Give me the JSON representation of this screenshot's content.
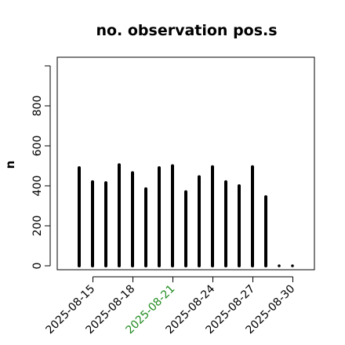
{
  "chart_data": {
    "type": "bar",
    "title": "no. observation pos.s",
    "xlabel": "",
    "ylabel": "n",
    "ylim": [
      0,
      1000
    ],
    "yticks": [
      0,
      200,
      400,
      600,
      800
    ],
    "xtick_labels": [
      "2025-08-15",
      "2025-08-18",
      "2025-08-21",
      "2025-08-24",
      "2025-08-27",
      "2025-08-30"
    ],
    "highlight_tick": "2025-08-21",
    "highlight_color": "#228B22",
    "categories": [
      "2025-08-14",
      "2025-08-15",
      "2025-08-16",
      "2025-08-17",
      "2025-08-18",
      "2025-08-19",
      "2025-08-20",
      "2025-08-21",
      "2025-08-22",
      "2025-08-23",
      "2025-08-24",
      "2025-08-25",
      "2025-08-26",
      "2025-08-27",
      "2025-08-28",
      "2025-08-29",
      "2025-08-30"
    ],
    "values": [
      490,
      420,
      415,
      505,
      465,
      385,
      490,
      500,
      370,
      445,
      495,
      420,
      400,
      495,
      345,
      0,
      0
    ],
    "bar_color": "#000000",
    "grid": false
  }
}
